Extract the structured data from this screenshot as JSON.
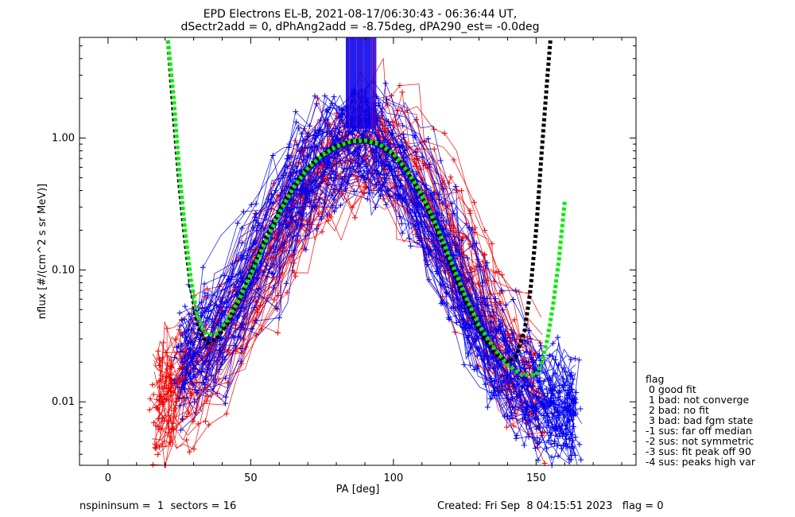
{
  "title_line1": "EPD Electrons EL-B, 2021-08-17/06:30:43 - 06:36:44 UT,",
  "title_line2": "dSectr2add = 0, dPhAng2add = -8.75deg, dPA290_est=  -0.0deg",
  "footer_left": "nspininsum =  1  sectors = 16",
  "footer_right": "Created: Fri Sep  8 04:15:51 2023   flag = 0",
  "legend": {
    "title": "flag",
    "items": [
      " 0 good fit",
      " 1 bad: not converge",
      " 2 bad: no fit",
      " 3 bad: bad fgm state",
      "-1 sus: far off median",
      "-2 sus: not symmetric",
      "-3 sus: fit peak off 90",
      "-4 sus: peaks high var"
    ]
  },
  "colors": {
    "red": "#ee0000",
    "blue": "#0000ee",
    "black_fit": "#000000",
    "green_fit": "#00ee00",
    "marker_purple": "#8800aa"
  },
  "chart_data": {
    "type": "line",
    "xlabel": "PA [deg]",
    "ylabel": "nflux [#/(cm^2 s sr MeV)]",
    "xlim": [
      -10,
      185
    ],
    "ylim": [
      0.0033,
      5.8
    ],
    "yscale": "log",
    "xticks": [
      0,
      50,
      100,
      150
    ],
    "xtick_labels": [
      "0",
      "50",
      "100",
      "150"
    ],
    "yticks": [
      0.01,
      0.1,
      1.0
    ],
    "ytick_labels": [
      "0.01",
      "0.10",
      "1.00"
    ],
    "series": [
      {
        "color": "red",
        "style": "line+plus",
        "x": [
          17,
          19,
          21,
          24,
          27,
          30,
          35,
          40,
          45,
          50,
          55,
          60,
          65,
          70,
          75,
          80,
          85,
          90,
          95,
          100,
          105,
          110,
          115,
          120,
          125,
          130,
          135,
          140,
          145,
          150,
          153
        ],
        "y": [
          0.009,
          0.01,
          0.012,
          0.014,
          0.016,
          0.018,
          0.024,
          0.035,
          0.05,
          0.075,
          0.12,
          0.19,
          0.3,
          0.45,
          0.62,
          0.78,
          0.88,
          0.92,
          0.86,
          0.72,
          0.55,
          0.38,
          0.24,
          0.14,
          0.08,
          0.045,
          0.028,
          0.02,
          0.015,
          0.012,
          0.011
        ]
      },
      {
        "color": "blue",
        "style": "line+plus",
        "x": [
          26,
          30,
          35,
          40,
          45,
          50,
          55,
          60,
          65,
          70,
          75,
          80,
          85,
          90,
          95,
          100,
          105,
          110,
          115,
          120,
          125,
          130,
          135,
          140,
          145,
          150,
          155,
          160,
          163
        ],
        "y": [
          0.02,
          0.022,
          0.03,
          0.045,
          0.065,
          0.1,
          0.16,
          0.26,
          0.4,
          0.55,
          0.7,
          0.82,
          0.9,
          0.93,
          0.85,
          0.68,
          0.48,
          0.3,
          0.18,
          0.1,
          0.058,
          0.034,
          0.022,
          0.016,
          0.013,
          0.011,
          0.01,
          0.009,
          0.008
        ]
      },
      {
        "color": "black_fit",
        "style": "dotted",
        "x": [
          21,
          23,
          25,
          27,
          29,
          31,
          33,
          35,
          38,
          42,
          46,
          50,
          55,
          60,
          65,
          70,
          75,
          80,
          85,
          90,
          95,
          100,
          105,
          110,
          115,
          120,
          125,
          130,
          135,
          140,
          143,
          146,
          148,
          150,
          152,
          154,
          155
        ],
        "y": [
          5.5,
          1.5,
          0.45,
          0.17,
          0.075,
          0.042,
          0.031,
          0.028,
          0.03,
          0.04,
          0.06,
          0.095,
          0.17,
          0.28,
          0.43,
          0.6,
          0.75,
          0.87,
          0.94,
          0.96,
          0.9,
          0.75,
          0.55,
          0.36,
          0.21,
          0.11,
          0.06,
          0.035,
          0.024,
          0.02,
          0.022,
          0.035,
          0.07,
          0.2,
          0.8,
          3.0,
          5.5
        ]
      },
      {
        "color": "green_fit",
        "style": "dotted",
        "x": [
          21,
          23,
          25,
          27,
          29,
          31,
          33,
          35,
          38,
          42,
          46,
          50,
          55,
          60,
          65,
          70,
          75,
          80,
          85,
          90,
          95,
          100,
          105,
          110,
          115,
          120,
          125,
          130,
          135,
          140,
          145,
          150,
          152,
          154,
          156,
          158,
          160
        ],
        "y": [
          5.5,
          2.0,
          0.55,
          0.2,
          0.085,
          0.048,
          0.036,
          0.032,
          0.033,
          0.042,
          0.06,
          0.092,
          0.16,
          0.27,
          0.42,
          0.59,
          0.74,
          0.86,
          0.94,
          0.96,
          0.9,
          0.76,
          0.56,
          0.37,
          0.22,
          0.12,
          0.065,
          0.038,
          0.026,
          0.019,
          0.016,
          0.016,
          0.02,
          0.03,
          0.055,
          0.12,
          0.33
        ]
      }
    ]
  }
}
